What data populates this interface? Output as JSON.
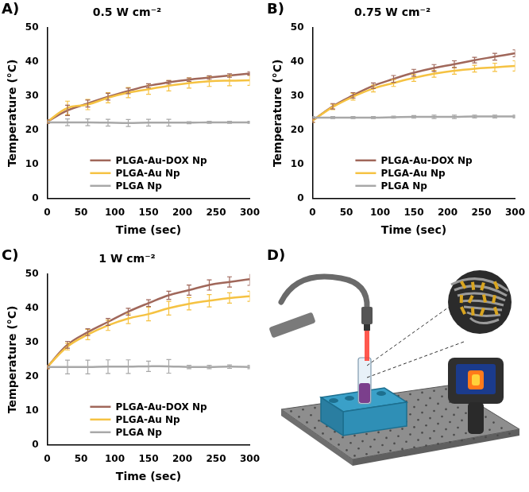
{
  "chart_data": [
    {
      "label": "A)",
      "type": "line",
      "title": "0.5 W cm⁻²",
      "x_label": "Time (sec)",
      "y_label": "Temperature (°C)",
      "x": [
        0,
        30,
        60,
        90,
        120,
        150,
        180,
        210,
        240,
        270,
        300
      ],
      "xlim": [
        0,
        300
      ],
      "xticks": [
        0,
        50,
        100,
        150,
        200,
        250,
        300
      ],
      "ylim": [
        0,
        50
      ],
      "yticks": [
        0,
        10,
        20,
        30,
        40,
        50
      ],
      "grid": false,
      "legend": "lower center",
      "series": [
        {
          "name": "PLGA-Au-DOX Np",
          "color": "#a0675a",
          "values": [
            22.5,
            25.8,
            27.8,
            29.8,
            31.5,
            33.0,
            34.0,
            34.8,
            35.4,
            36.0,
            36.6
          ],
          "errors": [
            0.5,
            1.5,
            1.0,
            1.0,
            0.8,
            0.6,
            0.5,
            0.5,
            0.5,
            0.5,
            0.5
          ]
        },
        {
          "name": "PLGA-Au Np",
          "color": "#f5c242",
          "values": [
            22.5,
            26.5,
            27.5,
            29.5,
            31.0,
            32.0,
            33.0,
            33.8,
            34.3,
            34.5,
            34.6
          ],
          "errors": [
            0.5,
            2.0,
            1.5,
            1.5,
            1.5,
            1.5,
            1.5,
            1.5,
            1.5,
            1.5,
            1.5
          ]
        },
        {
          "name": "PLGA Np",
          "color": "#a8a8a8",
          "values": [
            22.3,
            22.3,
            22.3,
            22.2,
            22.1,
            22.2,
            22.2,
            22.2,
            22.3,
            22.3,
            22.3
          ],
          "errors": [
            0.3,
            1.0,
            1.0,
            1.0,
            1.0,
            1.0,
            1.0,
            0.3,
            0.3,
            0.3,
            0.3
          ]
        }
      ]
    },
    {
      "label": "B)",
      "type": "line",
      "title": "0.75 W cm⁻²",
      "x_label": "Time (sec)",
      "y_label": "Temperature (°C)",
      "x": [
        0,
        30,
        60,
        90,
        120,
        150,
        180,
        210,
        240,
        270,
        300
      ],
      "xlim": [
        0,
        300
      ],
      "xticks": [
        0,
        50,
        100,
        150,
        200,
        250,
        300
      ],
      "ylim": [
        0,
        50
      ],
      "yticks": [
        0,
        10,
        20,
        30,
        40,
        50
      ],
      "grid": false,
      "legend": "lower center",
      "series": [
        {
          "name": "PLGA-Au-DOX Np",
          "color": "#a0675a",
          "values": [
            22.8,
            27.0,
            30.2,
            33.0,
            35.0,
            36.8,
            38.2,
            39.3,
            40.5,
            41.5,
            42.5
          ],
          "errors": [
            0.5,
            0.8,
            0.8,
            0.8,
            1.0,
            1.0,
            1.0,
            1.0,
            0.8,
            1.0,
            1.0
          ]
        },
        {
          "name": "PLGA-Au Np",
          "color": "#f5c242",
          "values": [
            22.8,
            26.8,
            29.8,
            32.2,
            33.8,
            35.3,
            36.5,
            37.4,
            38.0,
            38.4,
            38.8
          ],
          "errors": [
            0.5,
            0.8,
            1.0,
            1.0,
            1.0,
            1.0,
            1.0,
            1.0,
            1.0,
            1.2,
            1.5
          ]
        },
        {
          "name": "PLGA Np",
          "color": "#a8a8a8",
          "values": [
            23.7,
            23.7,
            23.7,
            23.7,
            23.8,
            23.9,
            23.9,
            23.9,
            24.0,
            24.0,
            24.0
          ],
          "errors": [
            0.3,
            0.3,
            0.3,
            0.3,
            0.3,
            0.4,
            0.5,
            0.5,
            0.4,
            0.4,
            0.4
          ]
        }
      ]
    },
    {
      "label": "C)",
      "type": "line",
      "title": "1 W cm⁻²",
      "x_label": "Time (sec)",
      "y_label": "Temperature (°C)",
      "x": [
        0,
        30,
        60,
        90,
        120,
        150,
        180,
        210,
        240,
        270,
        300
      ],
      "xlim": [
        0,
        300
      ],
      "xticks": [
        0,
        50,
        100,
        150,
        200,
        250,
        300
      ],
      "ylim": [
        0,
        50
      ],
      "yticks": [
        0,
        10,
        20,
        30,
        40,
        50
      ],
      "grid": false,
      "legend": "lower center",
      "series": [
        {
          "name": "PLGA-Au-DOX Np",
          "color": "#a0675a",
          "values": [
            22.8,
            29.3,
            33.0,
            36.0,
            39.0,
            41.5,
            43.8,
            45.3,
            46.8,
            47.7,
            48.5
          ],
          "errors": [
            0.5,
            1.0,
            1.0,
            1.0,
            1.0,
            1.0,
            1.2,
            1.5,
            1.5,
            1.5,
            1.8
          ]
        },
        {
          "name": "PLGA-Au Np",
          "color": "#f5c242",
          "values": [
            22.8,
            28.8,
            32.3,
            35.0,
            37.0,
            38.3,
            40.0,
            41.3,
            42.2,
            43.0,
            43.5
          ],
          "errors": [
            0.5,
            1.0,
            1.5,
            1.5,
            1.5,
            2.0,
            2.0,
            1.8,
            1.8,
            1.5,
            1.5
          ]
        },
        {
          "name": "PLGA Np",
          "color": "#a8a8a8",
          "values": [
            22.8,
            22.8,
            22.8,
            22.9,
            22.9,
            23.0,
            23.0,
            22.8,
            22.8,
            22.9,
            22.8
          ],
          "errors": [
            0.5,
            2.0,
            2.0,
            2.0,
            2.0,
            1.5,
            2.0,
            0.5,
            0.5,
            0.5,
            0.5
          ]
        }
      ]
    }
  ],
  "illustration": {
    "label": "D)"
  }
}
